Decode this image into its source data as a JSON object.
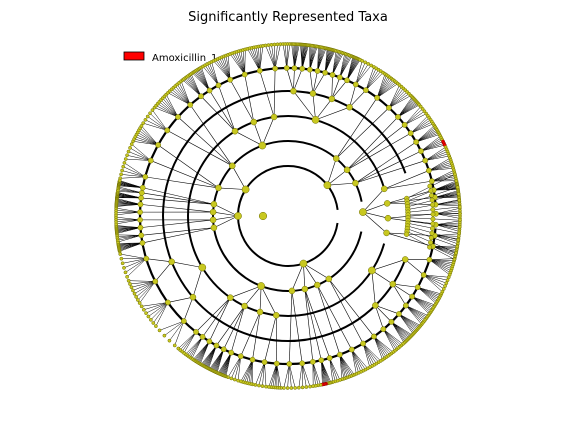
{
  "title": "Significantly Represented Taxa",
  "legend": {
    "placement": "top-left",
    "entries": [
      {
        "label": "Amoxicillin_1",
        "color": "#ff0000"
      }
    ]
  },
  "colors": {
    "node_fill": "#c8c820",
    "node_stroke": "#6e6e00",
    "ring": "#000000",
    "branch": "#000000",
    "highlight": "#ff0000"
  },
  "diagram": {
    "type": "circular-cladogram",
    "levels": 6
  }
}
